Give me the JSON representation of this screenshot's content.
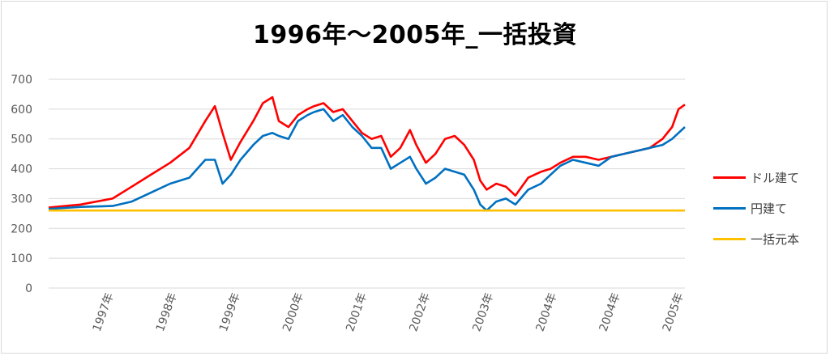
{
  "chart_data": {
    "type": "line",
    "title": "1996年～2005年_一括投資",
    "ylim": [
      0,
      700
    ],
    "yticks": [
      0,
      100,
      200,
      300,
      400,
      500,
      600,
      700
    ],
    "x_tick_labels": [
      "1997年",
      "1998年",
      "1999年",
      "2000年",
      "2001年",
      "2002年",
      "2003年",
      "2004年",
      "2004年",
      "2005年"
    ],
    "x": [
      1996.0,
      1996.5,
      1997.0,
      1997.3,
      1997.6,
      1997.9,
      1998.2,
      1998.45,
      1998.6,
      1998.72,
      1998.85,
      1999.0,
      1999.2,
      1999.35,
      1999.5,
      1999.6,
      1999.75,
      1999.9,
      2000.05,
      2000.15,
      2000.3,
      2000.45,
      2000.6,
      2000.75,
      2000.9,
      2001.05,
      2001.2,
      2001.35,
      2001.5,
      2001.65,
      2001.75,
      2001.9,
      2002.05,
      2002.2,
      2002.35,
      2002.5,
      2002.65,
      2002.75,
      2002.85,
      2003.0,
      2003.15,
      2003.3,
      2003.5,
      2003.7,
      2003.85,
      2004.0,
      2004.2,
      2004.4,
      2004.6,
      2004.8,
      2005.0,
      2005.2,
      2005.4,
      2005.6,
      2005.75,
      2005.85,
      2005.95
    ],
    "series": [
      {
        "name": "ドル建て",
        "color": "#ff0000",
        "values": [
          270,
          280,
          300,
          340,
          380,
          420,
          470,
          560,
          610,
          520,
          430,
          490,
          560,
          620,
          640,
          560,
          540,
          580,
          600,
          610,
          620,
          590,
          600,
          560,
          520,
          500,
          510,
          440,
          470,
          530,
          480,
          420,
          450,
          500,
          510,
          480,
          430,
          360,
          330,
          350,
          340,
          310,
          370,
          390,
          400,
          420,
          440,
          440,
          430,
          440,
          450,
          460,
          470,
          500,
          540,
          600,
          615
        ]
      },
      {
        "name": "円建て",
        "color": "#0070c0",
        "values": [
          265,
          272,
          275,
          290,
          320,
          350,
          370,
          430,
          430,
          350,
          380,
          430,
          480,
          510,
          520,
          510,
          500,
          560,
          580,
          590,
          600,
          560,
          580,
          540,
          510,
          470,
          470,
          400,
          420,
          440,
          400,
          350,
          370,
          400,
          390,
          380,
          330,
          280,
          260,
          290,
          300,
          280,
          330,
          350,
          380,
          410,
          430,
          420,
          410,
          440,
          450,
          460,
          470,
          480,
          500,
          520,
          540
        ]
      },
      {
        "name": "一括元本",
        "color": "#ffc000",
        "values": [
          260,
          260,
          260,
          260,
          260,
          260,
          260,
          260,
          260,
          260,
          260,
          260,
          260,
          260,
          260,
          260,
          260,
          260,
          260,
          260,
          260,
          260,
          260,
          260,
          260,
          260,
          260,
          260,
          260,
          260,
          260,
          260,
          260,
          260,
          260,
          260,
          260,
          260,
          260,
          260,
          260,
          260,
          260,
          260,
          260,
          260,
          260,
          260,
          260,
          260,
          260,
          260,
          260,
          260,
          260,
          260,
          260
        ]
      }
    ],
    "legend_position": "right",
    "grid": true
  }
}
